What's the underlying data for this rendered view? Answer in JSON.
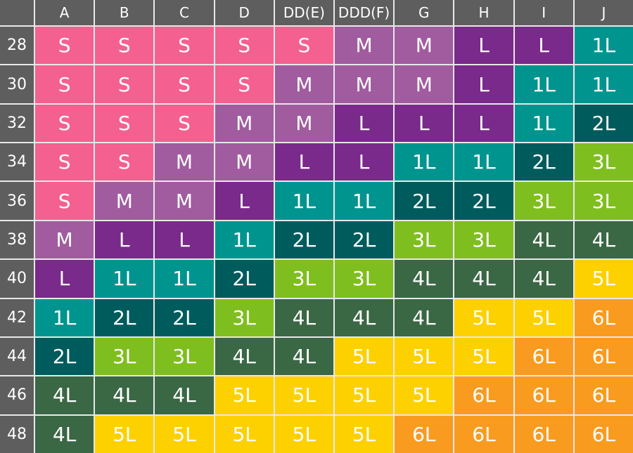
{
  "table": {
    "columns": [
      "A",
      "B",
      "C",
      "D",
      "DD(E)",
      "DDD(F)",
      "G",
      "H",
      "I",
      "J"
    ],
    "rows": [
      {
        "band": "28",
        "cells": [
          "S",
          "S",
          "S",
          "S",
          "S",
          "M",
          "M",
          "L",
          "L",
          "1L"
        ]
      },
      {
        "band": "30",
        "cells": [
          "S",
          "S",
          "S",
          "S",
          "M",
          "M",
          "M",
          "L",
          "1L",
          "1L"
        ]
      },
      {
        "band": "32",
        "cells": [
          "S",
          "S",
          "S",
          "M",
          "M",
          "L",
          "L",
          "L",
          "1L",
          "2L"
        ]
      },
      {
        "band": "34",
        "cells": [
          "S",
          "S",
          "M",
          "M",
          "L",
          "L",
          "1L",
          "1L",
          "2L",
          "3L"
        ]
      },
      {
        "band": "36",
        "cells": [
          "S",
          "M",
          "M",
          "L",
          "1L",
          "1L",
          "2L",
          "2L",
          "3L",
          "3L"
        ]
      },
      {
        "band": "38",
        "cells": [
          "M",
          "L",
          "L",
          "1L",
          "2L",
          "2L",
          "3L",
          "3L",
          "4L",
          "4L"
        ]
      },
      {
        "band": "40",
        "cells": [
          "L",
          "1L",
          "1L",
          "2L",
          "3L",
          "3L",
          "4L",
          "4L",
          "4L",
          "5L"
        ]
      },
      {
        "band": "42",
        "cells": [
          "1L",
          "2L",
          "2L",
          "3L",
          "4L",
          "4L",
          "4L",
          "5L",
          "5L",
          "6L"
        ]
      },
      {
        "band": "44",
        "cells": [
          "2L",
          "3L",
          "3L",
          "4L",
          "4L",
          "5L",
          "5L",
          "5L",
          "6L",
          "6L"
        ]
      },
      {
        "band": "46",
        "cells": [
          "4L",
          "4L",
          "4L",
          "5L",
          "5L",
          "5L",
          "5L",
          "6L",
          "6L",
          "6L"
        ]
      },
      {
        "band": "48",
        "cells": [
          "4L",
          "5L",
          "5L",
          "5L",
          "5L",
          "5L",
          "6L",
          "6L",
          "6L",
          "6L"
        ]
      }
    ],
    "size_colors": {
      "S": "#f4608f",
      "M": "#a15b9f",
      "L": "#7a2a8a",
      "1L": "#00948f",
      "2L": "#005b5d",
      "3L": "#7fbe1f",
      "4L": "#3a6744",
      "5L": "#fdd000",
      "6L": "#f99b1f"
    }
  }
}
